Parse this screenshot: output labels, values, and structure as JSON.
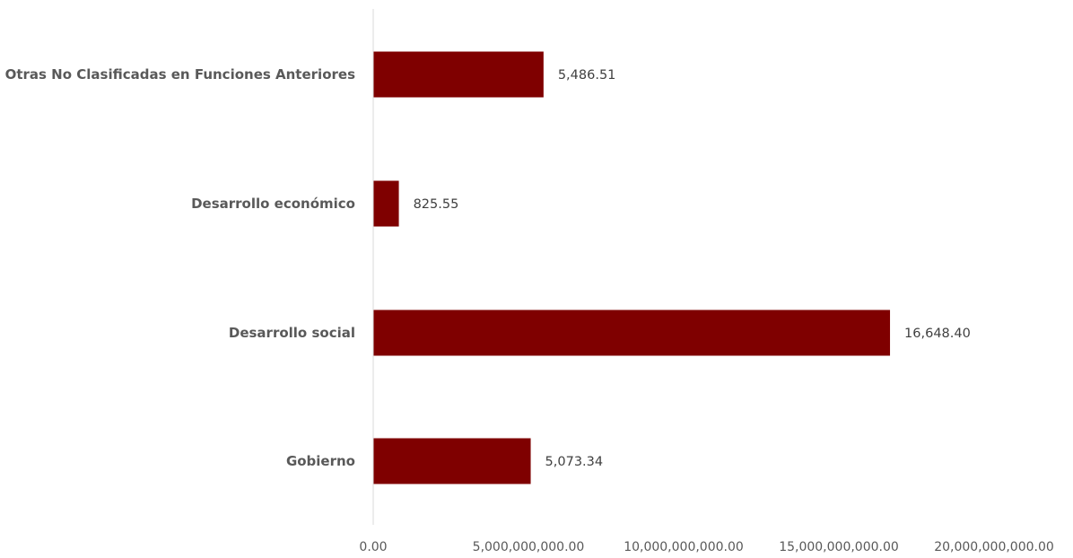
{
  "chart_data": {
    "type": "bar",
    "orientation": "horizontal",
    "categories": [
      "Otras No Clasificadas en Funciones Anteriores",
      "Desarrollo económico",
      "Desarrollo social",
      "Gobierno"
    ],
    "values": [
      5486510000,
      825550000,
      16648400000,
      5073340000
    ],
    "data_labels": [
      "5,486.51",
      "825.55",
      "16,648.40",
      "5,073.34"
    ],
    "xlim": [
      0,
      20000000000
    ],
    "x_ticks": [
      0,
      5000000000,
      10000000000,
      15000000000,
      20000000000
    ],
    "x_tick_labels": [
      "0.00",
      "5,000,000,000.00",
      "10,000,000,000.00",
      "15,000,000,000.00",
      "20,000,000,000.00"
    ],
    "title": "",
    "xlabel": "",
    "ylabel": "",
    "grid": false,
    "legend": "none",
    "bar_color": "#7f0000",
    "axis_color": "#d9d9d9"
  }
}
